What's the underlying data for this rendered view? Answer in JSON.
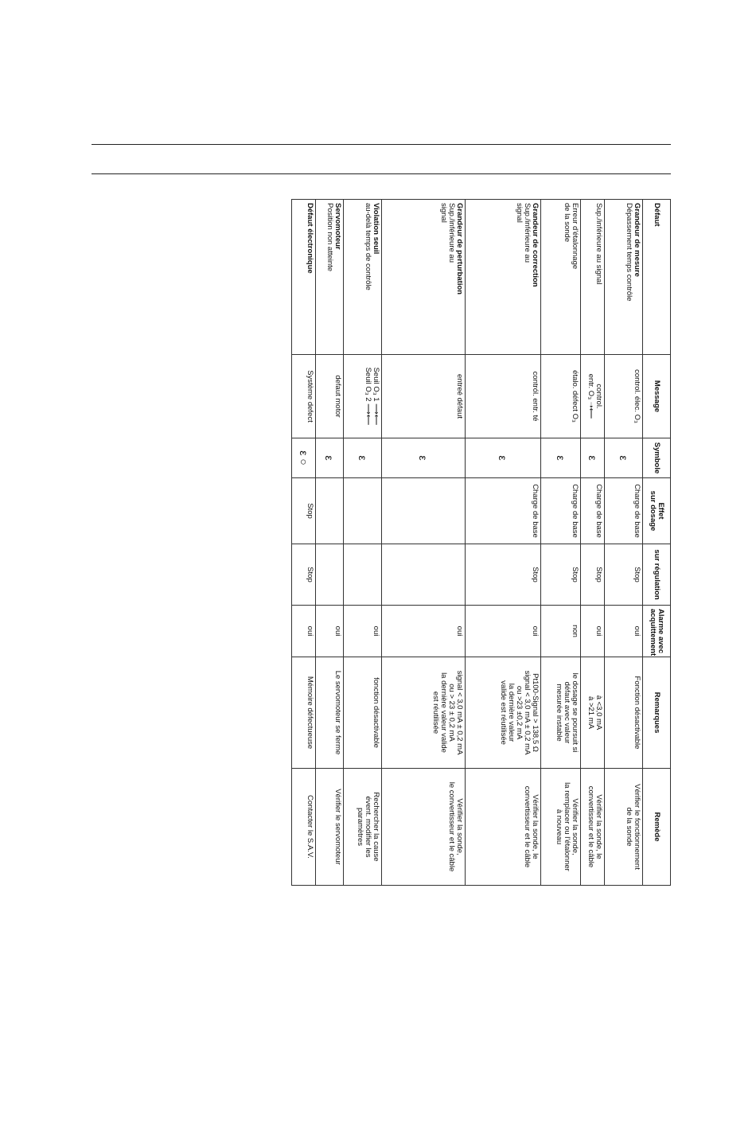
{
  "table": {
    "headers": {
      "defaut": "Défaut",
      "message": "Message",
      "symbole": "Symbole",
      "effet_dosage": "Effet\nsur dosage",
      "effet_regulation": "sur régulation",
      "alarme": "Alarme avec\nacquittement",
      "remarques": "Remarques",
      "remede": "Remède"
    },
    "rows": [
      {
        "title": "Grandeur de mesure",
        "defaut": "Dépassement temps contrôle",
        "message": "control. élec. O₃",
        "symbole": "ε",
        "dosage": "Charge de base",
        "regulation": "Stop",
        "alarme": "oui",
        "remarques": "Fonction désactivable",
        "remede": "Vérifier le fonctionnement\nde la sonde"
      },
      {
        "title": "",
        "defaut": "Sup./inférieure au signal",
        "message": "control.\nentr. O₃ ➝⟵",
        "symbole": "ε",
        "dosage": "Charge de base",
        "regulation": "Stop",
        "alarme": "oui",
        "remarques": "à <3,0 mA\nà >21 mA",
        "remede": "Vérifier la sonde, le\nconvertisseur et le câble"
      },
      {
        "title": "",
        "defaut": "Erreur d'étalonnage\nde la sonde",
        "message": "étalo. défect O₃",
        "symbole": "ε",
        "dosage": "Charge de base",
        "regulation": "Stop",
        "alarme": "non",
        "remarques": "le dosage se poursuit si\ndéfaut avec valeur\nmesurée instable",
        "remede": "Vérifier la sonde,\nla remplacer ou l'étalonner\nà nouveau"
      },
      {
        "title": "Grandeur de correction",
        "defaut": "Sup./inférieure au\nsignal",
        "message": "contról. entr. té",
        "symbole": "ε",
        "dosage": "Charge de base",
        "regulation": "Stop",
        "alarme": "oui",
        "remarques": "Pt100-Signal > 138,5 Ω\nsignal < 3,0 mA ± 0,2 mA\nou >23 ±0,2 mA\nla dernière valeur\nvalide est réutilisée",
        "remede": "Vérifier la sonde, le\nconvertisseur et le câble"
      },
      {
        "title": "Grandeur de perturbation",
        "defaut": "Sup./inférieure au\nsignal",
        "message": "entreé défaut",
        "symbole": "ε",
        "dosage": "",
        "regulation": "",
        "alarme": "oui",
        "remarques": "signal < 3,0 mA ± 0,2 mA\nou > 23 ± 0,2 mA\nla dernière valeur valide\nest réutilisée",
        "remede": "Vérifier la sonde,\nle convertisseur et le câble"
      },
      {
        "title": "Violation seuil",
        "defaut": "au-delà temps de contrôle",
        "message": "Seuil O₃ 1 ⟶⟵\nSeuil O₃ 2 ⟶⟵",
        "symbole": "ε",
        "dosage": "",
        "regulation": "",
        "alarme": "oui",
        "remarques": "fonction désactivable",
        "remede": "Rechercher la cause\névent. modifier les\nparamètres"
      },
      {
        "title": "Servomoteur",
        "defaut": "Position non atteinte",
        "message": "defaut motor",
        "symbole": "ε",
        "dosage": "",
        "regulation": "",
        "alarme": "oui",
        "remarques": "Le servomoteur se ferme",
        "remede": "Vérifier le servomoteur"
      },
      {
        "title": "Défaut électronique",
        "defaut": "",
        "message": "Système defect",
        "symbole": "ε ○",
        "dosage": "Stop",
        "regulation": "Stop",
        "alarme": "oui",
        "remarques": "Mémoire défectueuse",
        "remede": "Contacter le S.A.V."
      }
    ]
  }
}
